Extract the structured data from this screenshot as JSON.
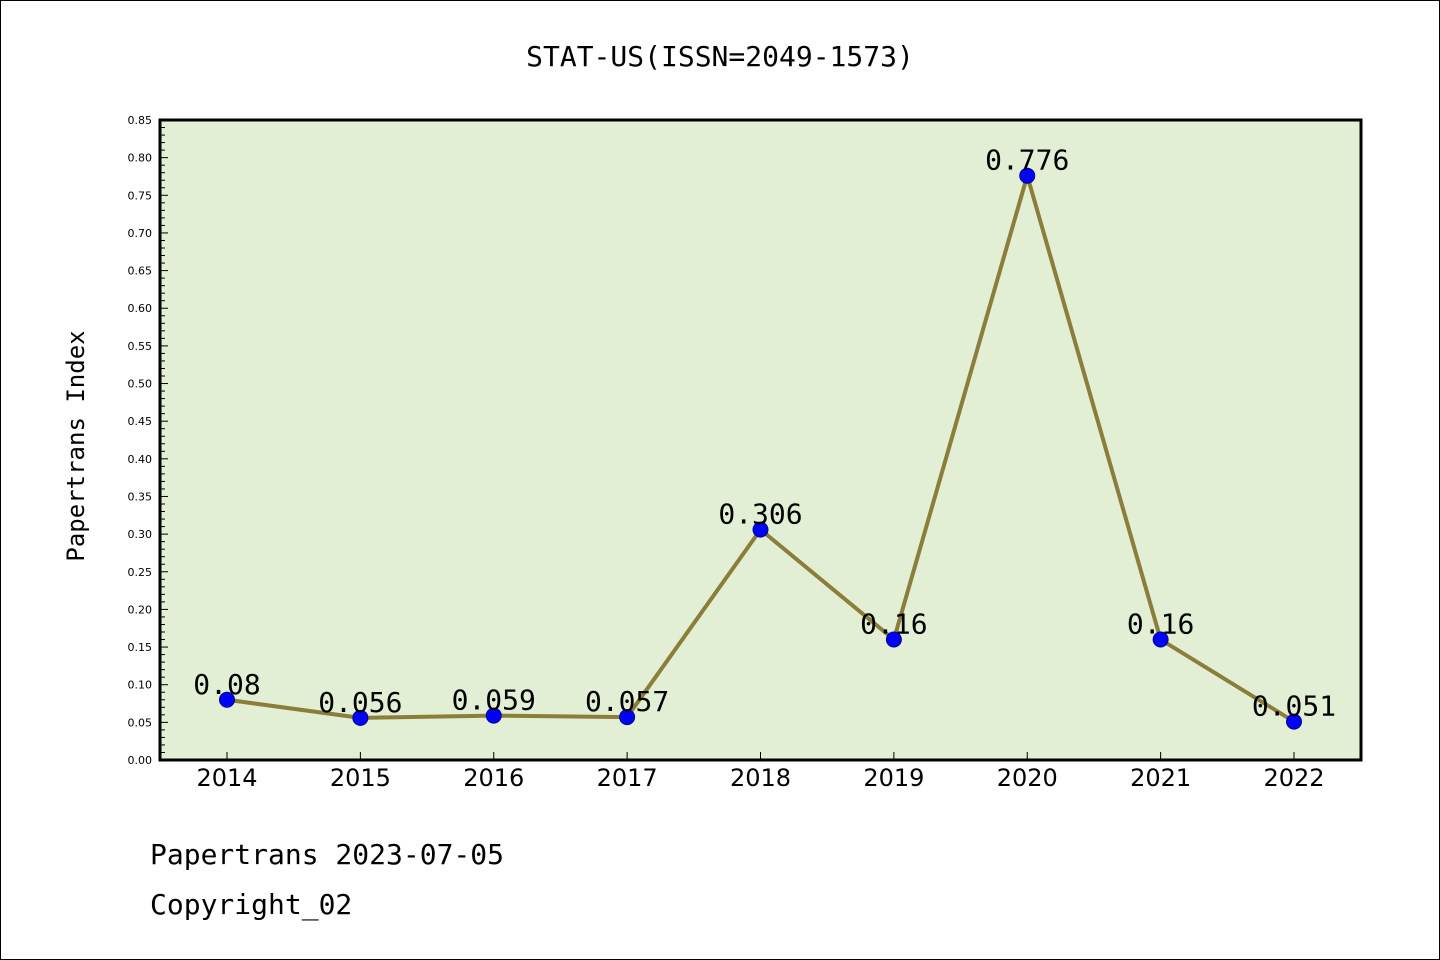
{
  "footer": {
    "line1": "Papertrans 2023-07-05",
    "line2": "Copyright_02"
  },
  "colors": {
    "plot_background": "#e2efd4",
    "line": "#8b7d3a",
    "marker": "#0000ff",
    "axis": "#000000"
  },
  "chart_data": {
    "type": "line",
    "title": "STAT-US(ISSN=2049-1573)",
    "xlabel": "",
    "ylabel": "Papertrans Index",
    "categories": [
      "2014",
      "2015",
      "2016",
      "2017",
      "2018",
      "2019",
      "2020",
      "2021",
      "2022"
    ],
    "series": [
      {
        "name": "Papertrans Index",
        "values": [
          0.08,
          0.056,
          0.059,
          0.057,
          0.306,
          0.16,
          0.776,
          0.16,
          0.051
        ],
        "labels": [
          "0.08",
          "0.056",
          "0.059",
          "0.057",
          "0.306",
          "0.16",
          "0.776",
          "0.16",
          "0.051"
        ]
      }
    ],
    "ylim": [
      0,
      0.85
    ],
    "yticks": [
      "0.00",
      "0.05",
      "0.10",
      "0.15",
      "0.20",
      "0.25",
      "0.30",
      "0.35",
      "0.40",
      "0.45",
      "0.50",
      "0.55",
      "0.60",
      "0.65",
      "0.70",
      "0.75",
      "0.80",
      "0.85"
    ],
    "grid": false,
    "legend": "none"
  }
}
